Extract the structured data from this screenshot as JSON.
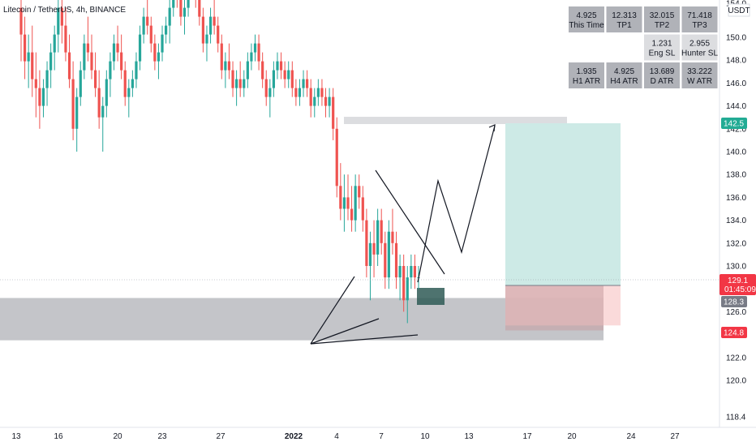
{
  "header": {
    "symbol": "Litecoin / TetherUS, 4h, BINANCE",
    "currency": "USDT"
  },
  "colors": {
    "up": "#26a69a",
    "down": "#ef5350",
    "profit_zone": "#cdeae6",
    "loss_zone": "#f9d3d3",
    "support_zone": "#c4c5c9",
    "cell_bg": "#b0b2b8",
    "cell_bg_light": "#dcdde0",
    "price_badge": "#f23645",
    "target_badge": "#22ab94",
    "entry_badge": "#787b86"
  },
  "chart_data": {
    "type": "candlestick",
    "y_ticks": [
      "154.0",
      "150.0",
      "148.0",
      "146.0",
      "144.0",
      "142.0",
      "140.0",
      "138.0",
      "136.0",
      "134.0",
      "132.0",
      "130.0",
      "128.0",
      "126.0",
      "124.0",
      "122.0",
      "120.0",
      "118.4"
    ],
    "x_ticks": [
      "13",
      "16",
      "20",
      "23",
      "27",
      "2022",
      "4",
      "7",
      "10",
      "13",
      "17",
      "20",
      "24",
      "27"
    ],
    "price_badges": {
      "target": "142.5",
      "last": "129.1",
      "countdown": "01:45:09",
      "entry": "128.3",
      "stop": "124.8"
    },
    "levels": {
      "resistance": 142.5,
      "entry": 128.3,
      "stop": 124.8,
      "target": 142.5,
      "support_top": 127.2,
      "support_bottom": 123.5
    },
    "candles": [
      [
        155,
        158,
        149,
        152
      ],
      [
        152,
        154,
        147,
        149
      ],
      [
        149,
        152,
        146,
        150
      ],
      [
        150,
        153,
        145,
        147
      ],
      [
        147,
        150,
        143,
        146
      ],
      [
        146,
        148,
        142,
        144
      ],
      [
        144,
        147,
        143,
        146
      ],
      [
        146,
        149,
        144,
        148
      ],
      [
        148,
        151,
        146,
        150
      ],
      [
        150,
        153,
        148,
        152
      ],
      [
        152,
        156,
        150,
        155
      ],
      [
        155,
        157,
        151,
        153
      ],
      [
        153,
        155,
        149,
        150
      ],
      [
        150,
        152,
        146,
        147
      ],
      [
        147,
        149,
        141,
        142
      ],
      [
        142,
        146,
        140,
        145
      ],
      [
        145,
        149,
        144,
        148
      ],
      [
        148,
        152,
        147,
        151
      ],
      [
        151,
        154,
        149,
        150
      ],
      [
        150,
        152,
        147,
        148
      ],
      [
        148,
        150,
        145,
        146
      ],
      [
        146,
        148,
        142,
        143
      ],
      [
        143,
        145,
        140,
        144
      ],
      [
        144,
        148,
        143,
        147
      ],
      [
        147,
        150,
        145,
        149
      ],
      [
        149,
        152,
        148,
        151
      ],
      [
        151,
        153,
        149,
        150
      ],
      [
        150,
        152,
        147,
        148
      ],
      [
        148,
        149,
        144,
        145
      ],
      [
        145,
        147,
        143,
        146
      ],
      [
        146,
        148,
        145,
        147
      ],
      [
        147,
        150,
        146,
        149
      ],
      [
        149,
        153,
        148,
        152
      ],
      [
        152,
        155,
        151,
        154
      ],
      [
        154,
        156,
        152,
        153
      ],
      [
        153,
        154,
        150,
        151
      ],
      [
        151,
        152,
        148,
        149
      ],
      [
        149,
        151,
        147,
        150
      ],
      [
        150,
        153,
        149,
        152
      ],
      [
        152,
        154,
        151,
        153
      ],
      [
        153,
        156,
        151,
        155
      ],
      [
        155,
        158,
        154,
        157
      ],
      [
        157,
        159,
        155,
        156
      ],
      [
        156,
        157,
        153,
        154
      ],
      [
        154,
        156,
        152,
        155
      ],
      [
        155,
        158,
        154,
        157
      ],
      [
        157,
        160,
        156,
        158
      ],
      [
        158,
        160,
        155,
        156
      ],
      [
        156,
        157,
        153,
        154
      ],
      [
        154,
        155,
        150,
        151
      ],
      [
        151,
        153,
        149,
        152
      ],
      [
        152,
        155,
        151,
        154
      ],
      [
        154,
        156,
        152,
        153
      ],
      [
        153,
        154,
        150,
        151
      ],
      [
        151,
        152,
        147,
        148
      ],
      [
        148,
        150,
        146,
        149
      ],
      [
        149,
        151,
        147,
        148
      ],
      [
        148,
        149,
        145,
        146
      ],
      [
        146,
        148,
        144,
        147
      ],
      [
        147,
        149,
        145,
        146
      ],
      [
        146,
        148,
        145,
        147
      ],
      [
        147,
        150,
        146,
        149
      ],
      [
        149,
        151,
        148,
        150
      ],
      [
        150,
        152,
        149,
        151
      ],
      [
        151,
        152,
        148,
        149
      ],
      [
        149,
        150,
        146,
        147
      ],
      [
        147,
        148,
        144,
        145
      ],
      [
        145,
        147,
        143,
        146
      ],
      [
        146,
        149,
        145,
        148
      ],
      [
        148,
        150,
        147,
        149
      ],
      [
        149,
        150,
        147,
        148
      ],
      [
        148,
        149,
        146,
        147
      ],
      [
        147,
        149,
        146,
        148
      ],
      [
        148,
        149,
        145,
        146
      ],
      [
        146,
        147,
        144,
        145
      ],
      [
        145,
        147,
        144,
        146
      ],
      [
        146,
        148,
        145,
        147
      ],
      [
        147,
        148,
        145,
        146
      ],
      [
        146,
        147,
        143,
        144
      ],
      [
        144,
        146,
        143,
        145
      ],
      [
        145,
        147,
        144,
        146
      ],
      [
        146,
        147,
        144,
        145
      ],
      [
        145,
        146,
        143,
        144
      ],
      [
        144,
        146,
        143,
        145
      ],
      [
        145,
        146,
        141,
        142
      ],
      [
        142,
        143,
        136,
        137
      ],
      [
        137,
        139,
        134,
        135
      ],
      [
        135,
        138,
        133,
        136
      ],
      [
        136,
        138,
        134,
        135
      ],
      [
        135,
        137,
        133,
        134
      ],
      [
        134,
        138,
        133,
        137
      ],
      [
        137,
        138,
        135,
        136
      ],
      [
        136,
        137,
        133,
        134
      ],
      [
        134,
        135,
        129,
        130
      ],
      [
        130,
        133,
        127,
        132
      ],
      [
        132,
        134,
        129,
        131
      ],
      [
        131,
        135,
        130,
        134
      ],
      [
        134,
        135,
        131,
        132
      ],
      [
        132,
        133,
        128,
        129
      ],
      [
        129,
        134,
        128,
        133
      ],
      [
        133,
        135,
        131,
        132
      ],
      [
        132,
        133,
        128,
        129
      ],
      [
        129,
        131,
        127,
        130
      ],
      [
        130,
        131,
        126,
        127
      ],
      [
        127,
        130,
        125,
        129
      ],
      [
        129,
        131,
        128,
        130
      ],
      [
        130,
        131,
        128,
        129
      ],
      [
        129,
        130,
        128,
        129
      ]
    ],
    "stats_table": [
      [
        {
          "value": "4.925",
          "label": "This Time"
        },
        {
          "value": "12.313",
          "label": "TP1"
        },
        {
          "value": "32.015",
          "label": "TP2"
        },
        {
          "value": "71.418",
          "label": "TP3"
        }
      ],
      [
        null,
        null,
        {
          "value": "1.231",
          "label": "Eng SL"
        },
        {
          "value": "2.955",
          "label": "Hunter SL"
        }
      ],
      [
        {
          "value": "1.935",
          "label": "H1 ATR"
        },
        {
          "value": "4.925",
          "label": "H4 ATR"
        },
        {
          "value": "13.689",
          "label": "D ATR"
        },
        {
          "value": "33.222",
          "label": "W ATR"
        }
      ]
    ]
  }
}
